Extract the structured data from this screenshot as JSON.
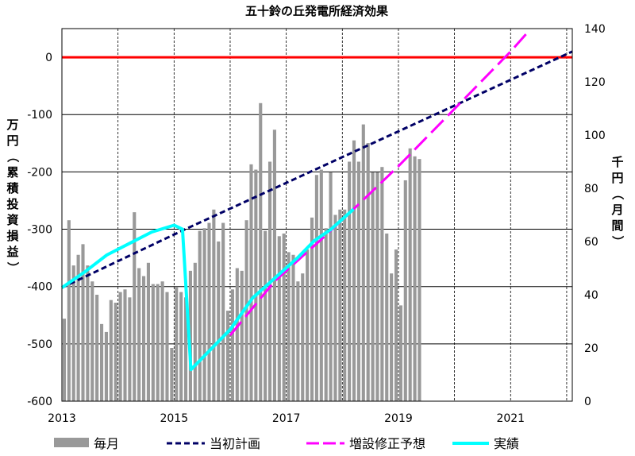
{
  "chart_data": {
    "type": "bar+line",
    "title": "五十鈴の丘発電所経済効果",
    "left_axis": {
      "label": "万円（累積投資損益）",
      "ylim": [
        -600,
        50
      ],
      "ticks": [
        0,
        -100,
        -200,
        -300,
        -400,
        -500,
        -600
      ],
      "tick_labels": [
        "0",
        "-100",
        "-200",
        "-300",
        "-400",
        "-500",
        "-600"
      ]
    },
    "right_axis": {
      "label": "千円（月間）",
      "ylim": [
        0,
        140
      ],
      "ticks": [
        0,
        20,
        40,
        60,
        80,
        100,
        120,
        140
      ],
      "tick_labels": [
        "0",
        "20",
        "40",
        "60",
        "80",
        "100",
        "120",
        "140"
      ]
    },
    "x_axis": {
      "xlim": [
        2013,
        2022.1
      ],
      "ticks": [
        2013,
        2015,
        2017,
        2019,
        2021
      ],
      "tick_labels": [
        "2013",
        "2015",
        "2017",
        "2019",
        "2021"
      ],
      "grid_years": [
        2013,
        2014,
        2015,
        2016,
        2017,
        2018,
        2019,
        2020,
        2021,
        2022
      ]
    },
    "zero_line_color": "#ff0000",
    "legend": {
      "placement": "bottom",
      "items": [
        {
          "key": "monthly",
          "label": "毎月"
        },
        {
          "key": "plan",
          "label": "当初計画"
        },
        {
          "key": "revised",
          "label": "増設修正予想"
        },
        {
          "key": "actual",
          "label": "実績"
        }
      ]
    },
    "series": [
      {
        "key": "monthly",
        "name": "毎月",
        "kind": "bar",
        "axis": "right",
        "color": "#999999",
        "start": "2013-01",
        "values": [
          31,
          68,
          51,
          55,
          59,
          51,
          45,
          40,
          29,
          26,
          38,
          37,
          41,
          42,
          39,
          71,
          50,
          47,
          52,
          44,
          44,
          45,
          41,
          20,
          43,
          41,
          39,
          49,
          52,
          64,
          65,
          67,
          72,
          60,
          67,
          34,
          42,
          50,
          49,
          68,
          89,
          87,
          112,
          64,
          90,
          102,
          62,
          63,
          56,
          55,
          45,
          48,
          57,
          69,
          85,
          87,
          65,
          86,
          70,
          72,
          72,
          90,
          98,
          90,
          104,
          97,
          86,
          86,
          88,
          63,
          48,
          57,
          36,
          83,
          95,
          92,
          91
        ]
      },
      {
        "key": "plan",
        "name": "当初計画",
        "kind": "line",
        "axis": "left",
        "color": "#000066",
        "dash": "dashed",
        "x": [
          2013,
          2015.2,
          2022.1
        ],
        "y": [
          -402,
          -300,
          10
        ]
      },
      {
        "key": "revised",
        "name": "増設修正予想",
        "kind": "line",
        "axis": "left",
        "color": "#ff00ff",
        "dash": "long-dash",
        "x": [
          2016.0,
          2016.8,
          2017.6,
          2018.2,
          2019.0,
          2020.0,
          2021.0,
          2021.3
        ],
        "y": [
          -485,
          -390,
          -320,
          -265,
          -190,
          -90,
          10,
          43
        ]
      },
      {
        "key": "actual",
        "name": "実績",
        "kind": "line",
        "axis": "left",
        "color": "#00ffff",
        "x": [
          2013.0,
          2013.4,
          2013.8,
          2014.2,
          2014.6,
          2015.0,
          2015.15,
          2015.3,
          2015.7,
          2016.0,
          2016.4,
          2016.8,
          2017.2,
          2017.5,
          2017.8,
          2018.2
        ],
        "y": [
          -402,
          -375,
          -345,
          -325,
          -305,
          -293,
          -300,
          -545,
          -505,
          -475,
          -420,
          -385,
          -350,
          -320,
          -300,
          -265
        ]
      }
    ]
  }
}
